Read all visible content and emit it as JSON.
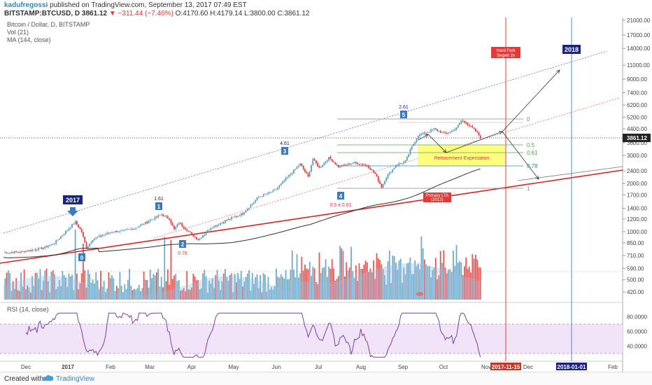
{
  "header": {
    "author": "kadufregossi",
    "published": " published on TradingView.com, September 13, 2017 07:49 EST",
    "symbol": "BITSTAMP:BTCUSD, D",
    "last": "3861.12",
    "change": "−311.44 (−7.46%)",
    "ohlc": "O:4170.60 H:4179.14 L:3800.00 C:3861.12"
  },
  "indicators": {
    "title": "Bitcoin / Dollar, D, BITSTAMP",
    "vol": "Vol (21)",
    "ma": "MA (144, close)",
    "rsi": "RSI (14, close)"
  },
  "footer": {
    "created": "Created with",
    "brand": "TradingView"
  },
  "colors": {
    "up": "#5b9ab8",
    "down": "#e53935",
    "ma": "#333333",
    "trend": "#e02020",
    "channel": "#6b6bdc",
    "rsi": "#7b3fa0",
    "rsi_band": "#f1e3f8",
    "retracement": "#ffff66",
    "blue_line": "#5588cc",
    "badge": "#3d7ab8"
  },
  "chart_data": {
    "type": "candlestick",
    "x_ticks": [
      "Dec",
      "2017",
      "Feb",
      "Mar",
      "Apr",
      "May",
      "Jun",
      "Jul",
      "Aug",
      "Sep",
      "Oct",
      "Nov",
      "2017-11-15",
      "Dec",
      "2018-01-01",
      "Feb"
    ],
    "y_scale": "log",
    "y_ticks": [
      "21000.00",
      "17000.00",
      "14000.00",
      "11000.00",
      "9000.00",
      "7400.00",
      "6200.00",
      "5200.00",
      "4400.00",
      "3600.00",
      "3000.00",
      "2400.00",
      "2000.00",
      "1700.00",
      "1400.00",
      "1200.00",
      "1000.00",
      "850.00",
      "710.00",
      "590.00",
      "500.00",
      "420.00"
    ],
    "last_price": "3861.12",
    "rsi_ticks": [
      "80.0000",
      "60.0000",
      "40.0000"
    ],
    "vertical_events": [
      {
        "label": "2017-11-15",
        "note": "Hard Fork\nSegwit 2x"
      },
      {
        "label": "2018-01-01",
        "note": "2018"
      }
    ],
    "wave_labels": [
      {
        "badge": "0",
        "text": ""
      },
      {
        "badge": "1",
        "text": "1.61"
      },
      {
        "badge": "2",
        "text": "0.78"
      },
      {
        "badge": "3",
        "text": "4.61"
      },
      {
        "badge": "4",
        "text": "0.5 e 0.61"
      },
      {
        "badge": "5",
        "text": "2.61"
      }
    ],
    "fib_levels": [
      "0",
      "0.5",
      "0.61",
      "0.78",
      "1"
    ],
    "annotations": {
      "retracement": "Retracement Expectation",
      "primary_lta": "Primary LTA\n(2012)",
      "year_2017": "2017"
    }
  }
}
